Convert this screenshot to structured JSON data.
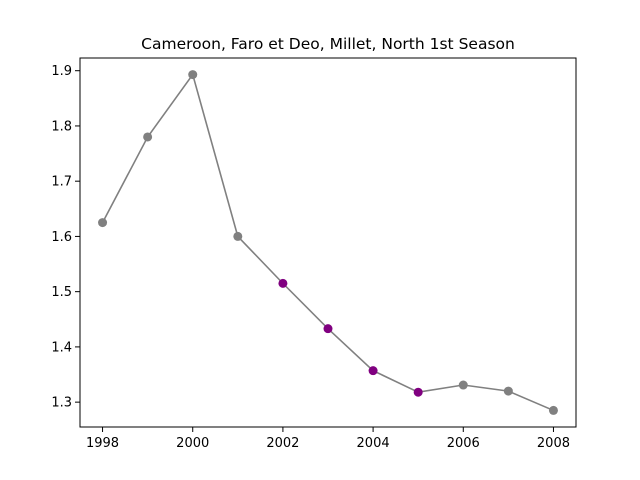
{
  "chart_data": {
    "type": "line",
    "title": "Cameroon, Faro et Deo, Millet, North 1st Season",
    "xlabel": "",
    "ylabel": "",
    "x": [
      1998,
      1999,
      2000,
      2001,
      2002,
      2003,
      2004,
      2005,
      2006,
      2007,
      2008
    ],
    "y": [
      1.625,
      1.78,
      1.893,
      1.6,
      1.515,
      1.433,
      1.357,
      1.318,
      1.331,
      1.32,
      1.285
    ],
    "highlighted": [
      false,
      false,
      false,
      false,
      true,
      true,
      true,
      true,
      false,
      false,
      false
    ],
    "xlim": [
      1997.5,
      2008.5
    ],
    "ylim": [
      1.255,
      1.923
    ],
    "xticks": [
      1998,
      2000,
      2002,
      2004,
      2006,
      2008
    ],
    "yticks": [
      1.3,
      1.4,
      1.5,
      1.6,
      1.7,
      1.8,
      1.9
    ],
    "grid": false,
    "legend": "none",
    "colors": {
      "line": "#808080",
      "marker": "#808080",
      "highlight_marker": "#800080",
      "axes": "#000000"
    }
  }
}
